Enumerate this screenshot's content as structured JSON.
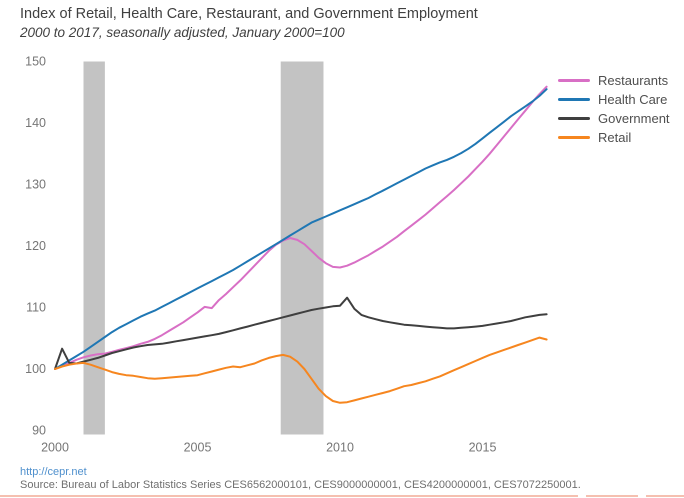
{
  "header": {
    "title": "Index of Retail, Health Care, Restaurant, and Government Employment",
    "subtitle": "2000 to 2017, seasonally adjusted, January 2000=100"
  },
  "footer": {
    "link": "http://cepr.net",
    "source": "Source: Bureau of Labor Statistics Series CES6562000101, CES9000000001, CES4200000001, CES7072250001."
  },
  "chart_data": {
    "type": "line",
    "title": "Index of Retail, Health Care, Restaurant, and Government Employment",
    "subtitle": "2000 to 2017, seasonally adjusted, January 2000=100",
    "xlabel": "",
    "ylabel": "",
    "grid": false,
    "legend_position": "right",
    "xlim": [
      1999.8,
      2017.8
    ],
    "ylim": [
      90,
      150
    ],
    "x_ticks": [
      2000,
      2005,
      2010,
      2015
    ],
    "y_ticks": [
      90,
      100,
      110,
      120,
      130,
      140,
      150
    ],
    "band_color": "#c3c3c3",
    "recession_bands": [
      {
        "start": 2001.0,
        "end": 2001.75
      },
      {
        "start": 2007.92,
        "end": 2009.42
      }
    ],
    "x": [
      2000.0,
      2000.25,
      2000.5,
      2000.75,
      2001.0,
      2001.25,
      2001.5,
      2001.75,
      2002.0,
      2002.25,
      2002.5,
      2002.75,
      2003.0,
      2003.25,
      2003.5,
      2003.75,
      2004.0,
      2004.25,
      2004.5,
      2004.75,
      2005.0,
      2005.25,
      2005.5,
      2005.75,
      2006.0,
      2006.25,
      2006.5,
      2006.75,
      2007.0,
      2007.25,
      2007.5,
      2007.75,
      2008.0,
      2008.25,
      2008.5,
      2008.75,
      2009.0,
      2009.25,
      2009.5,
      2009.75,
      2010.0,
      2010.25,
      2010.5,
      2010.75,
      2011.0,
      2011.25,
      2011.5,
      2011.75,
      2012.0,
      2012.25,
      2012.5,
      2012.75,
      2013.0,
      2013.25,
      2013.5,
      2013.75,
      2014.0,
      2014.25,
      2014.5,
      2014.75,
      2015.0,
      2015.25,
      2015.5,
      2015.75,
      2016.0,
      2016.25,
      2016.5,
      2016.75,
      2017.0,
      2017.25
    ],
    "series": [
      {
        "name": "Restaurants",
        "color": "#d86fc5",
        "values": [
          100.0,
          100.5,
          101.0,
          101.5,
          101.9,
          102.2,
          102.4,
          102.5,
          102.8,
          103.1,
          103.4,
          103.7,
          104.1,
          104.4,
          104.9,
          105.5,
          106.2,
          106.9,
          107.6,
          108.4,
          109.2,
          110.1,
          109.9,
          111.2,
          112.2,
          113.3,
          114.4,
          115.6,
          116.8,
          118.0,
          119.2,
          120.2,
          120.9,
          121.3,
          121.0,
          120.3,
          119.2,
          118.1,
          117.2,
          116.6,
          116.5,
          116.8,
          117.3,
          117.9,
          118.5,
          119.2,
          119.9,
          120.7,
          121.5,
          122.4,
          123.3,
          124.2,
          125.1,
          126.1,
          127.1,
          128.1,
          129.1,
          130.2,
          131.3,
          132.5,
          133.7,
          135.0,
          136.4,
          137.8,
          139.2,
          140.6,
          142.0,
          143.4,
          144.7,
          145.9
        ]
      },
      {
        "name": "Health Care",
        "color": "#1f77b4",
        "values": [
          100.0,
          100.7,
          101.4,
          102.1,
          102.8,
          103.6,
          104.4,
          105.2,
          106.0,
          106.7,
          107.3,
          107.9,
          108.5,
          109.0,
          109.5,
          110.1,
          110.7,
          111.3,
          111.9,
          112.5,
          113.1,
          113.7,
          114.3,
          114.9,
          115.5,
          116.1,
          116.8,
          117.5,
          118.2,
          118.9,
          119.6,
          120.3,
          121.0,
          121.7,
          122.4,
          123.1,
          123.8,
          124.3,
          124.8,
          125.3,
          125.8,
          126.3,
          126.8,
          127.3,
          127.8,
          128.4,
          129.0,
          129.6,
          130.2,
          130.8,
          131.4,
          132.0,
          132.6,
          133.1,
          133.6,
          134.0,
          134.5,
          135.1,
          135.8,
          136.6,
          137.5,
          138.4,
          139.3,
          140.2,
          141.1,
          141.9,
          142.7,
          143.5,
          144.4,
          145.5
        ]
      },
      {
        "name": "Government",
        "color": "#3f3f3f",
        "values": [
          100.0,
          103.3,
          101.0,
          100.9,
          101.2,
          101.5,
          101.8,
          102.2,
          102.6,
          102.9,
          103.2,
          103.5,
          103.7,
          103.9,
          104.0,
          104.1,
          104.3,
          104.5,
          104.7,
          104.9,
          105.1,
          105.3,
          105.5,
          105.7,
          106.0,
          106.3,
          106.6,
          106.9,
          107.2,
          107.5,
          107.8,
          108.1,
          108.4,
          108.7,
          109.0,
          109.3,
          109.6,
          109.8,
          110.0,
          110.2,
          110.3,
          111.6,
          109.8,
          108.8,
          108.4,
          108.1,
          107.8,
          107.6,
          107.4,
          107.2,
          107.1,
          107.0,
          106.9,
          106.8,
          106.7,
          106.6,
          106.6,
          106.7,
          106.8,
          106.9,
          107.0,
          107.2,
          107.4,
          107.6,
          107.8,
          108.1,
          108.4,
          108.6,
          108.8,
          108.9
        ]
      },
      {
        "name": "Retail",
        "color": "#f6861f",
        "values": [
          100.0,
          100.4,
          100.7,
          100.9,
          101.0,
          100.7,
          100.3,
          99.9,
          99.5,
          99.2,
          99.0,
          98.9,
          98.7,
          98.5,
          98.4,
          98.5,
          98.6,
          98.7,
          98.8,
          98.9,
          99.0,
          99.3,
          99.6,
          99.9,
          100.2,
          100.4,
          100.3,
          100.6,
          100.9,
          101.4,
          101.8,
          102.1,
          102.3,
          102.0,
          101.2,
          100.0,
          98.4,
          96.8,
          95.6,
          94.8,
          94.5,
          94.6,
          94.9,
          95.2,
          95.5,
          95.8,
          96.1,
          96.4,
          96.8,
          97.2,
          97.4,
          97.7,
          98.0,
          98.4,
          98.8,
          99.3,
          99.8,
          100.3,
          100.8,
          101.3,
          101.8,
          102.3,
          102.7,
          103.1,
          103.5,
          103.9,
          104.3,
          104.7,
          105.1,
          104.8
        ]
      }
    ]
  }
}
